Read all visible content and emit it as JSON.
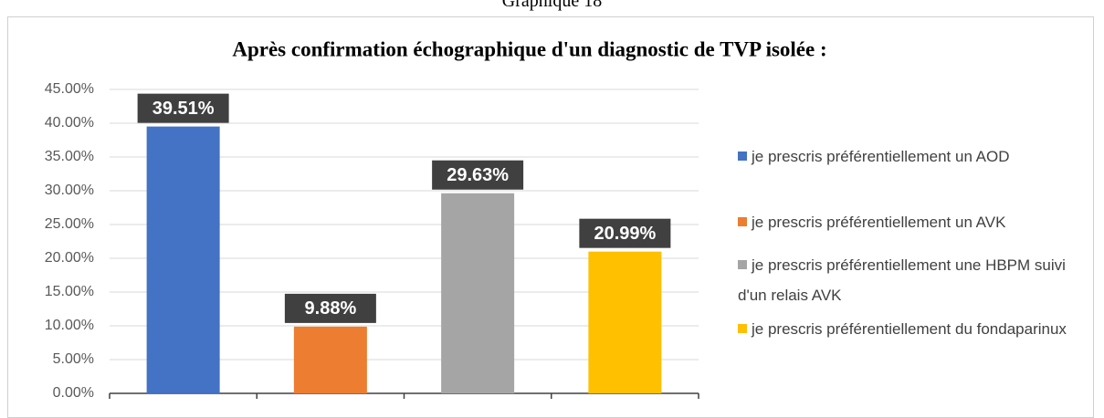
{
  "chart_data": {
    "type": "bar",
    "caption": "Graphique 18",
    "title": "Après confirmation échographique d'un diagnostic de TVP isolée :",
    "categories": [
      null,
      null,
      null,
      null
    ],
    "values": [
      39.51,
      9.88,
      29.63,
      20.99
    ],
    "value_labels": [
      "39.51%",
      "9.88%",
      "29.63%",
      "20.99%"
    ],
    "colors": [
      "#4472c4",
      "#ed7d31",
      "#a5a5a5",
      "#ffc000"
    ],
    "legend": [
      "je prescris préférentiellement un AOD",
      "je prescris préférentiellement un AVK",
      "je prescris préférentiellement une HBPM suivi d'un relais AVK",
      "je prescris préférentiellement du fondaparinux"
    ],
    "ylim": [
      0,
      45
    ],
    "yticks": [
      {
        "value": 0,
        "label": "0.00%"
      },
      {
        "value": 5,
        "label": "5.00%"
      },
      {
        "value": 10,
        "label": "10.00%"
      },
      {
        "value": 15,
        "label": "15.00%"
      },
      {
        "value": 20,
        "label": "20.00%"
      },
      {
        "value": 25,
        "label": "25.00%"
      },
      {
        "value": 30,
        "label": "30.00%"
      },
      {
        "value": 35,
        "label": "35.00%"
      },
      {
        "value": 40,
        "label": "40.00%"
      },
      {
        "value": 45,
        "label": "45.00%"
      }
    ],
    "grid": true
  }
}
